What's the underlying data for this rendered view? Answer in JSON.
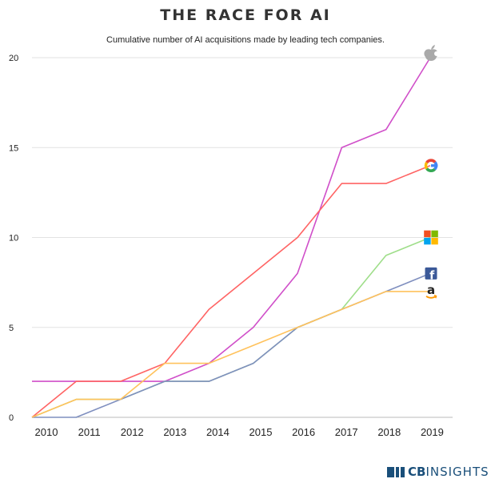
{
  "header": {
    "title": "THE RACE FOR AI",
    "subtitle": "Cumulative number of AI acquisitions made by leading tech companies."
  },
  "brand": {
    "logo_text_bold": "CB",
    "logo_text_light": "INSIGHTS"
  },
  "chart_data": {
    "type": "line",
    "title": "THE RACE FOR AI",
    "subtitle": "Cumulative number of AI acquisitions made by leading tech companies.",
    "categories": [
      "2010",
      "2011",
      "2012",
      "2013",
      "2014",
      "2015",
      "2016",
      "2017",
      "2018",
      "2019"
    ],
    "ylim": [
      0,
      20
    ],
    "yticks": [
      0,
      5,
      10,
      15,
      20
    ],
    "xlabel": "",
    "ylabel": "",
    "grid": true,
    "series": [
      {
        "name": "Apple",
        "icon": "apple-icon",
        "color": "#d04fc9",
        "values": [
          2,
          2,
          2,
          2,
          3,
          5,
          8,
          15,
          16,
          20
        ]
      },
      {
        "name": "Google",
        "icon": "google-icon",
        "color": "#ff6464",
        "values": [
          0,
          2,
          2,
          3,
          6,
          8,
          10,
          13,
          13,
          14
        ]
      },
      {
        "name": "Microsoft",
        "icon": "microsoft-icon",
        "color": "#9fde8a",
        "values": [
          0,
          1,
          1,
          2,
          2,
          3,
          5,
          6,
          9,
          10
        ]
      },
      {
        "name": "Facebook",
        "icon": "facebook-icon",
        "color": "#7f8fbf",
        "values": [
          0,
          0,
          1,
          2,
          2,
          3,
          5,
          6,
          7,
          8
        ]
      },
      {
        "name": "Amazon",
        "icon": "amazon-icon",
        "color": "#ffc25c",
        "values": [
          0,
          1,
          1,
          3,
          3,
          4,
          5,
          6,
          7,
          7
        ]
      }
    ]
  }
}
